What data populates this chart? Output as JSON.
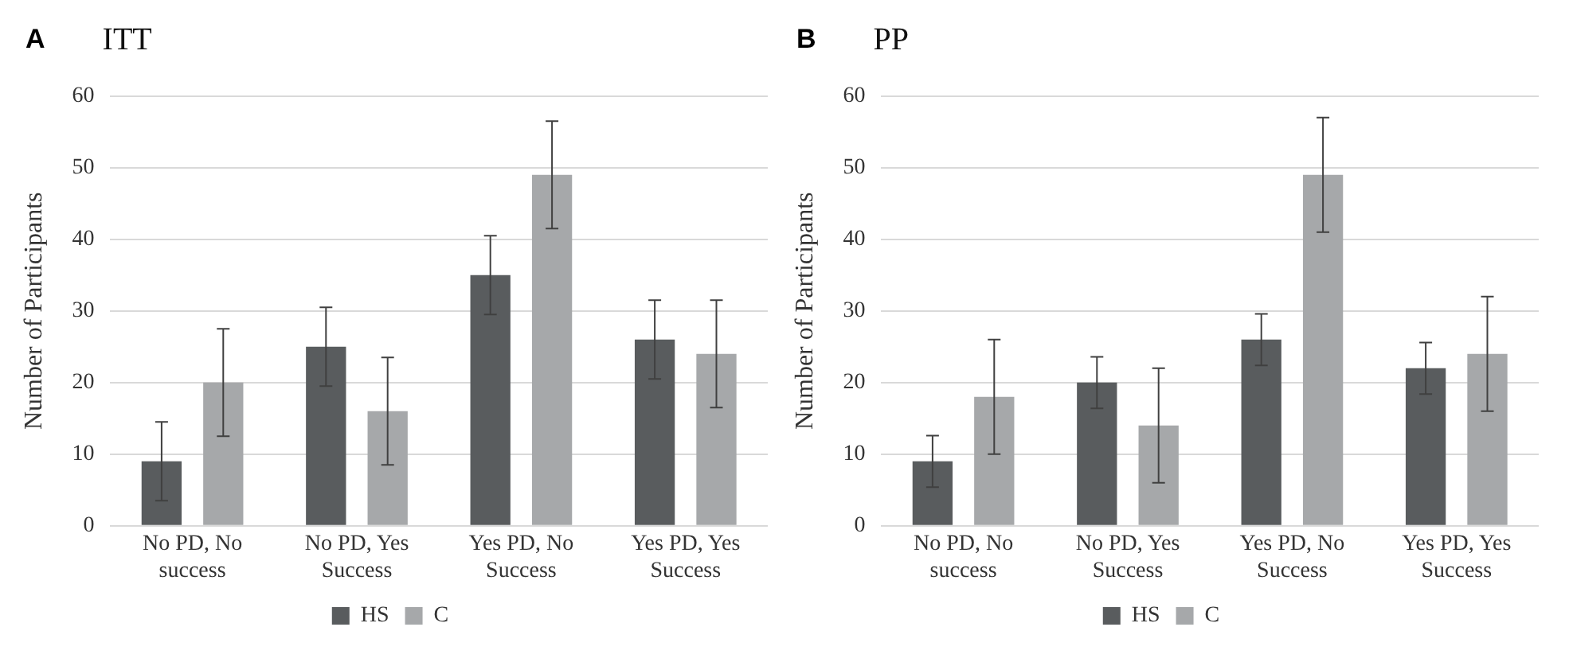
{
  "chart_data": [
    {
      "type": "bar",
      "title": "ITT",
      "annotations": [
        "A"
      ],
      "ylabel": "Number of Participants",
      "categories": [
        "No PD, No success",
        "No PD, Yes Success",
        "Yes PD, No Success",
        "Yes PD, Yes Success"
      ],
      "series": [
        {
          "name": "HS",
          "color": "#595c5e",
          "values": [
            9,
            25,
            35,
            26
          ],
          "errors": [
            5.5,
            5.5,
            5.5,
            5.5
          ]
        },
        {
          "name": "C",
          "color": "#a6a8aa",
          "values": [
            20,
            16,
            49,
            24
          ],
          "errors": [
            7.5,
            7.5,
            7.5,
            7.5
          ]
        }
      ],
      "ylim": [
        0,
        60
      ],
      "yticks": [
        0,
        10,
        20,
        30,
        40,
        50,
        60
      ],
      "grid": "y",
      "legend": "bottom"
    },
    {
      "type": "bar",
      "title": "PP",
      "annotations": [
        "B"
      ],
      "ylabel": "Number of Participants",
      "categories": [
        "No PD, No success",
        "No PD, Yes Success",
        "Yes PD, No Success",
        "Yes PD, Yes Success"
      ],
      "series": [
        {
          "name": "HS",
          "color": "#595c5e",
          "values": [
            9,
            20,
            26,
            22
          ],
          "errors": [
            3.6,
            3.6,
            3.6,
            3.6
          ]
        },
        {
          "name": "C",
          "color": "#a6a8aa",
          "values": [
            18,
            14,
            49,
            24
          ],
          "errors": [
            8,
            8,
            8,
            8
          ]
        }
      ],
      "ylim": [
        0,
        60
      ],
      "yticks": [
        0,
        10,
        20,
        30,
        40,
        50,
        60
      ],
      "grid": "y",
      "legend": "bottom"
    }
  ]
}
